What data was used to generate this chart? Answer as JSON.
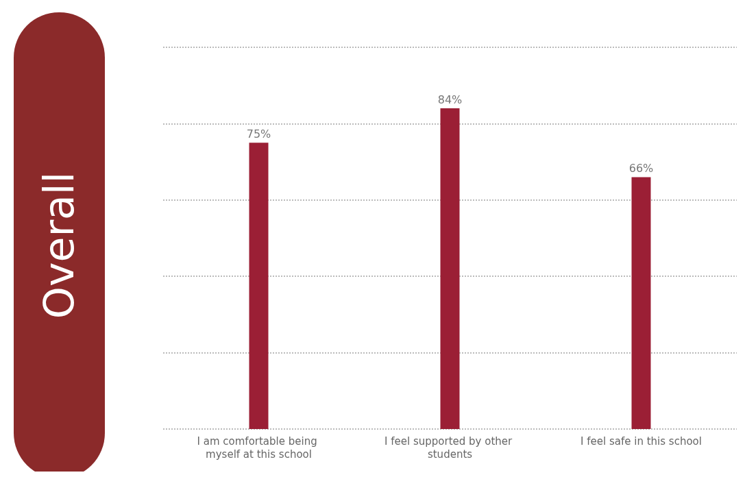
{
  "chart_data": {
    "type": "bar",
    "title": "Overall",
    "categories": [
      "I am comfortable being myself at this school",
      "I feel supported by other students",
      "I feel safe in this school"
    ],
    "values": [
      75,
      84,
      66
    ],
    "color": "#9b1f35",
    "value_labels": [
      "75%",
      "84%",
      "66%"
    ],
    "ylim": [
      0,
      100
    ],
    "yticks": [
      {
        "value": 0,
        "label": null
      },
      {
        "value": 20,
        "label": null
      },
      {
        "value": 40,
        "label": null
      },
      {
        "value": 60,
        "label": null
      },
      {
        "value": 80,
        "label": null
      },
      {
        "value": 100,
        "label": null
      }
    ],
    "grid": "y"
  }
}
